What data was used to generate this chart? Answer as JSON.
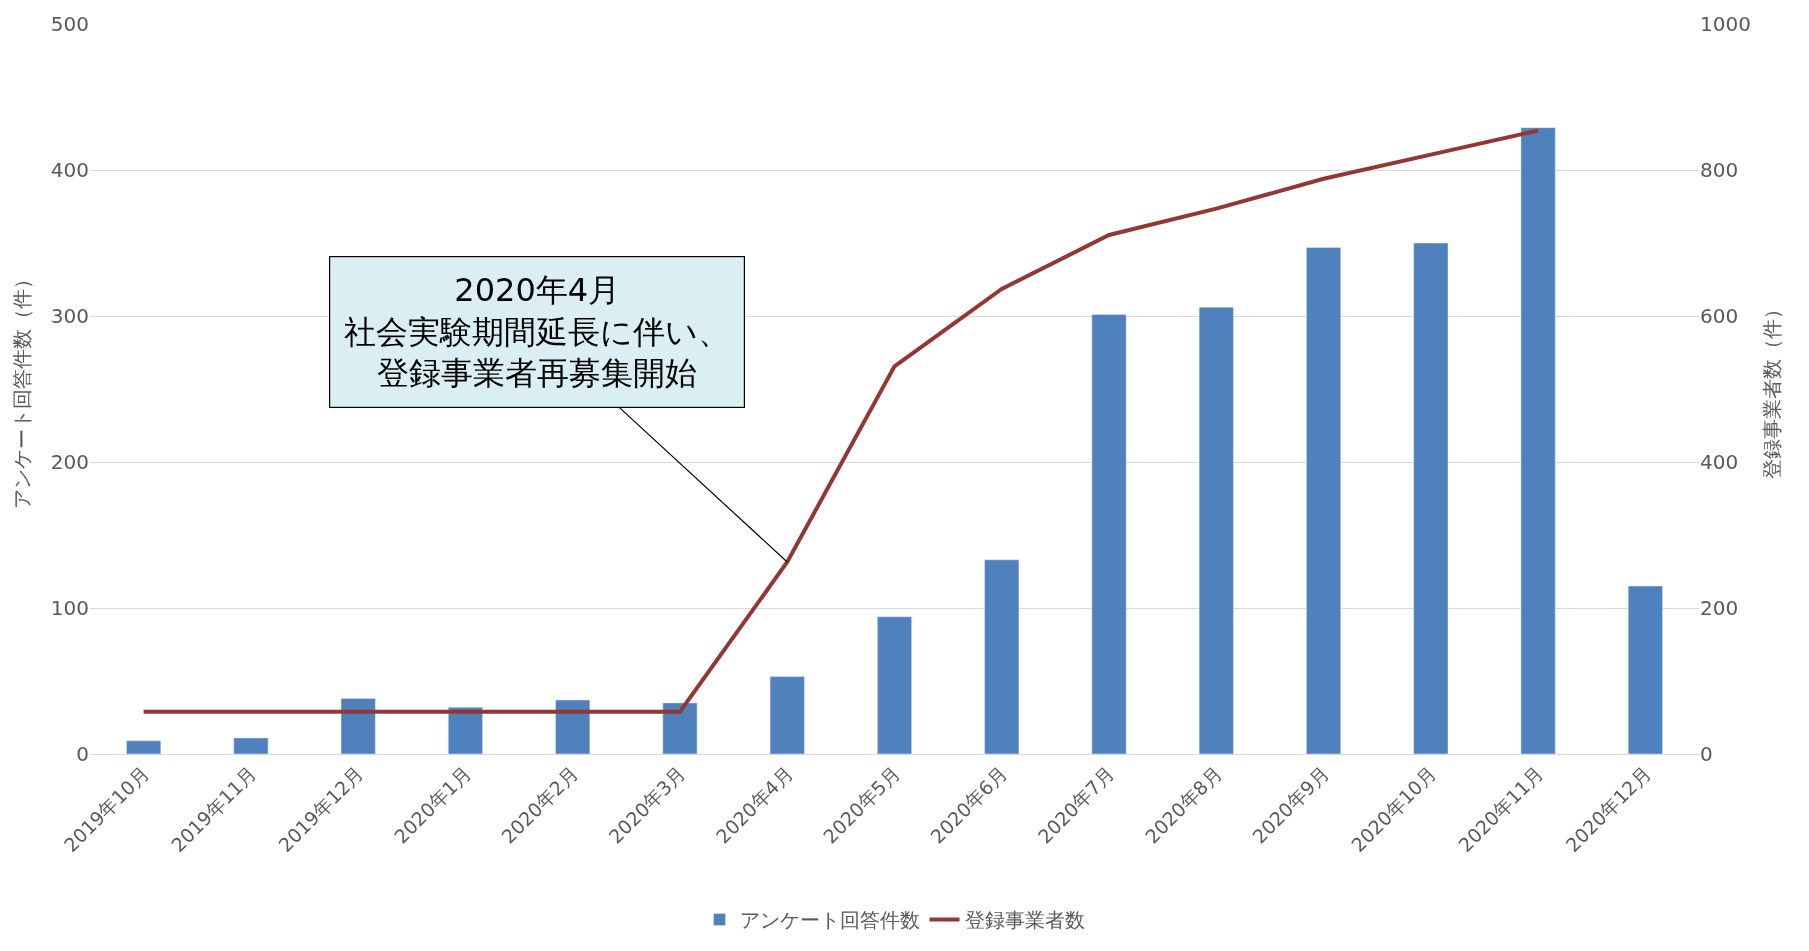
{
  "chart_data": {
    "type": "bar",
    "categories": [
      "2019年10月",
      "2019年11月",
      "2019年12月",
      "2020年1月",
      "2020年2月",
      "2020年3月",
      "2020年4月",
      "2020年5月",
      "2020年6月",
      "2020年7月",
      "2020年8月",
      "2020年9月",
      "2020年10月",
      "2020年11月",
      "2020年12月"
    ],
    "series": [
      {
        "name": "アンケート回答件数",
        "color": "#4f81bd",
        "values": [
          9,
          11,
          38,
          32,
          37,
          35,
          53,
          94,
          133,
          301,
          306,
          347,
          350,
          429,
          115
        ]
      },
      {
        "name": "登録事業者数",
        "type": "line",
        "axis": "y2",
        "color": "#943634",
        "values": [
          58,
          58,
          58,
          58,
          58,
          58,
          263,
          531,
          637,
          711,
          747,
          788,
          821,
          854,
          null
        ]
      }
    ],
    "ylabel": "アンケート回答件数（件）",
    "y2label": "登録事業者数（件）",
    "ylim": [
      0,
      500
    ],
    "yticks": [
      0,
      100,
      200,
      300,
      400,
      500
    ],
    "y2lim": [
      0,
      1000
    ],
    "y2ticks": [
      0,
      200,
      400,
      600,
      800,
      1000
    ],
    "grid": "y",
    "legend": "bottom",
    "marker": "none",
    "line_style": "solid",
    "annotations": [
      {
        "text": "2020年4月社会実験期間延長に伴い、登録事業者再募集開始",
        "x": "2020年4月",
        "y": 131.5
      }
    ]
  }
}
